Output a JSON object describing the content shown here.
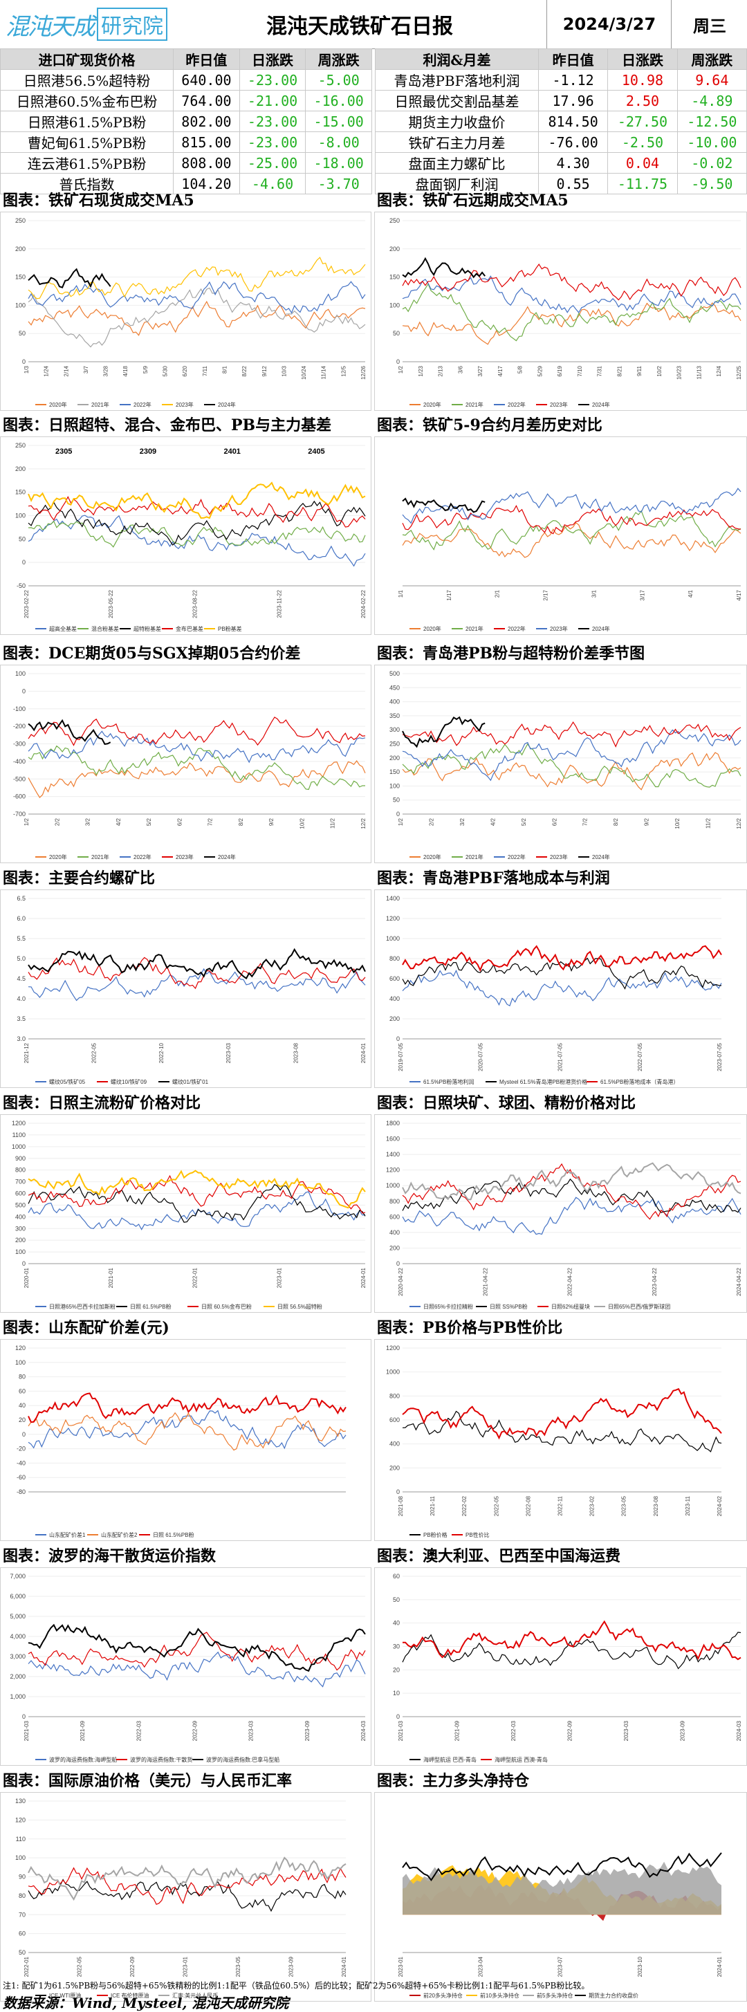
{
  "header": {
    "logo_glyphs": "混沌天成",
    "logo_box": "研究院",
    "title": "混沌天成铁矿石日报",
    "date": "2024/3/27",
    "weekday": "周三"
  },
  "colors": {
    "green": "#21b021",
    "red": "#e00000",
    "header_bg": "#d9d9d9"
  },
  "left_table": {
    "columns": [
      "进口矿现货价格",
      "昨日值",
      "日涨跌",
      "周涨跌"
    ],
    "rows": [
      [
        "日照港56.5%超特粉",
        "640.00",
        "-23.00",
        "-5.00"
      ],
      [
        "日照港60.5%金布巴粉",
        "764.00",
        "-21.00",
        "-16.00"
      ],
      [
        "日照港61.5%PB粉",
        "802.00",
        "-23.00",
        "-15.00"
      ],
      [
        "曹妃甸61.5%PB粉",
        "815.00",
        "-23.00",
        "-8.00"
      ],
      [
        "连云港61.5%PB粉",
        "808.00",
        "-25.00",
        "-18.00"
      ],
      [
        "普氏指数",
        "104.20",
        "-4.60",
        "-3.70"
      ]
    ]
  },
  "right_table": {
    "columns": [
      "利润&月差",
      "昨日值",
      "日涨跌",
      "周涨跌"
    ],
    "rows": [
      [
        "青岛港PBF落地利润",
        "-1.12",
        "10.98",
        "9.64"
      ],
      [
        "日照最优交割品基差",
        "17.96",
        "2.50",
        "-4.89"
      ],
      [
        "期货主力收盘价",
        "814.50",
        "-27.50",
        "-12.50"
      ],
      [
        "铁矿石主力月差",
        "-76.00",
        "-2.50",
        "-10.00"
      ],
      [
        "盘面主力螺矿比",
        "4.30",
        "0.04",
        "-0.02"
      ],
      [
        "盘面钢厂利润",
        "0.55",
        "-11.75",
        "-9.50"
      ]
    ]
  },
  "sections": [
    "图表：铁矿石现货成交MA5",
    "图表：铁矿石远期成交MA5",
    "图表：日照超特、混合、金布巴、PB与主力基差",
    "图表：铁矿5-9合约月差历史对比",
    "图表：DCE期货05与SGX掉期05合约价差",
    "图表：青岛港PB粉与超特粉价差季节图",
    "图表：主要合约螺矿比",
    "图表：青岛港PBF落地成本与利润",
    "图表：日照主流粉矿价格对比",
    "图表：日照块矿、球团、精粉价格对比",
    "图表：山东配矿价差(元)",
    "图表：PB价格与PB性价比",
    "图表：波罗的海干散货运价指数",
    "图表：澳大利亚、巴西至中国海运费",
    "图表：国际原油价格（美元）与人民币汇率",
    "图表：主力多头净持仓"
  ],
  "footer": {
    "note": "注1: 配矿1为61.5%PB粉与56%超特+65%铁精粉的比例1:1配平（铁品位60.5%）后的比较；配矿2为56%超特+65%卡粉比例1:1配平与61.5%PB粉比较。",
    "source": "数据来源：Wind, Mysteel, 混沌天成研究院"
  },
  "chart_data": [
    {
      "type": "line",
      "title": "图表：铁矿石现货成交MA5",
      "ylim": [
        0,
        250
      ],
      "yticks": [
        "0",
        "50",
        "100",
        "150",
        "200",
        "250"
      ],
      "xticks": [
        "1/3",
        "1/24",
        "2/14",
        "3/7",
        "3/28",
        "4/18",
        "5/9",
        "5/30",
        "6/20",
        "7/11",
        "8/1",
        "8/22",
        "9/12",
        "10/3",
        "10/24",
        "11/14",
        "12/5",
        "12/26"
      ],
      "series": [
        {
          "name": "2020年",
          "color": "#ed7d31"
        },
        {
          "name": "2021年",
          "color": "#a5a5a5"
        },
        {
          "name": "2022年",
          "color": "#4472c4"
        },
        {
          "name": "2023年",
          "color": "#ffc000"
        },
        {
          "name": "2024年",
          "color": "#000000"
        }
      ]
    },
    {
      "type": "line",
      "title": "图表：铁矿石远期成交MA5",
      "ylim": [
        0,
        250
      ],
      "yticks": [
        "0",
        "50",
        "100",
        "150",
        "200",
        "250"
      ],
      "xticks": [
        "1/2",
        "1/23",
        "2/13",
        "3/6",
        "3/27",
        "4/17",
        "5/8",
        "5/29",
        "6/19",
        "7/10",
        "7/31",
        "8/21",
        "9/11",
        "10/2",
        "10/23",
        "11/13",
        "12/4",
        "12/25"
      ],
      "series": [
        {
          "name": "2020年",
          "color": "#ed7d31"
        },
        {
          "name": "2021年",
          "color": "#70ad47"
        },
        {
          "name": "2022年",
          "color": "#4472c4"
        },
        {
          "name": "2023年",
          "color": "#e00000"
        },
        {
          "name": "2024年",
          "color": "#000000"
        }
      ]
    },
    {
      "type": "line",
      "title": "图表：日照超特、混合、金布巴、PB与主力基差",
      "ylim": [
        -50,
        250
      ],
      "yticks": [
        "-50",
        "0",
        "50",
        "100",
        "150",
        "200",
        "250"
      ],
      "annotations": [
        "2305",
        "2309",
        "2401",
        "2405"
      ],
      "xticks": [
        "2023-02-22",
        "2023-05-22",
        "2023-08-22",
        "2023-11-22",
        "2024-02-22"
      ],
      "series": [
        {
          "name": "超高全基差",
          "color": "#4472c4"
        },
        {
          "name": "混合粉基差",
          "color": "#70ad47"
        },
        {
          "name": "超特粉基差",
          "color": "#000000"
        },
        {
          "name": "金布巴基差",
          "color": "#e00000"
        },
        {
          "name": "PB粉基差",
          "color": "#ffc000"
        }
      ]
    },
    {
      "type": "line",
      "title": "图表：铁矿5-9合约月差历史对比",
      "ylim": [
        -50,
        200
      ],
      "xticks": [
        "1/1",
        "1/17",
        "2/1",
        "2/17",
        "3/1",
        "3/17",
        "4/1",
        "4/17"
      ],
      "series": [
        {
          "name": "2020年",
          "color": "#ed7d31"
        },
        {
          "name": "2021年",
          "color": "#70ad47"
        },
        {
          "name": "2022年",
          "color": "#e00000"
        },
        {
          "name": "2023年",
          "color": "#4472c4"
        },
        {
          "name": "2024年",
          "color": "#000000"
        }
      ]
    },
    {
      "type": "line",
      "title": "图表：DCE期货05与SGX掉期05合约价差",
      "ylim": [
        -700,
        100
      ],
      "yticks": [
        "-700",
        "-600",
        "-500",
        "-400",
        "-300",
        "-200",
        "-100",
        "0",
        "100"
      ],
      "xticks": [
        "1/2",
        "2/2",
        "3/2",
        "4/2",
        "5/2",
        "6/2",
        "7/2",
        "8/2",
        "9/2",
        "10/2",
        "11/2",
        "12/2"
      ],
      "series": [
        {
          "name": "2020年",
          "color": "#ed7d31"
        },
        {
          "name": "2021年",
          "color": "#70ad47"
        },
        {
          "name": "2022年",
          "color": "#4472c4"
        },
        {
          "name": "2023年",
          "color": "#e00000"
        },
        {
          "name": "2024年",
          "color": "#000000"
        }
      ]
    },
    {
      "type": "line",
      "title": "图表：青岛港PB粉与超特粉价差季节图",
      "ylim": [
        0,
        500
      ],
      "yticks": [
        "0",
        "50",
        "100",
        "150",
        "200",
        "250",
        "300",
        "350",
        "400",
        "450",
        "500"
      ],
      "xticks": [
        "1/2",
        "2/2",
        "3/2",
        "4/2",
        "5/2",
        "6/2",
        "7/2",
        "8/2",
        "9/2",
        "10/2",
        "11/2",
        "12/2"
      ],
      "series": [
        {
          "name": "2020年",
          "color": "#ed7d31"
        },
        {
          "name": "2021年",
          "color": "#70ad47"
        },
        {
          "name": "2022年",
          "color": "#4472c4"
        },
        {
          "name": "2023年",
          "color": "#e00000"
        },
        {
          "name": "2024年",
          "color": "#000000"
        }
      ]
    },
    {
      "type": "line",
      "title": "图表：主要合约螺矿比",
      "ylim": [
        3,
        6.5
      ],
      "yticks": [
        "3.0",
        "3.5",
        "4.0",
        "4.5",
        "5.0",
        "5.5",
        "6.0",
        "6.5"
      ],
      "xticks": [
        "2021-12",
        "2022-05",
        "2022-10",
        "2023-03",
        "2023-08",
        "2024-01"
      ],
      "series": [
        {
          "name": "螺纹05/铁矿05",
          "color": "#4472c4"
        },
        {
          "name": "螺纹10/铁矿09",
          "color": "#e00000"
        },
        {
          "name": "螺纹01/铁矿01",
          "color": "#000000"
        }
      ]
    },
    {
      "type": "line",
      "title": "图表：青岛港PBF落地成本与利润",
      "ylim": [
        0,
        1400
      ],
      "yticks": [
        "0",
        "200",
        "400",
        "600",
        "800",
        "1000",
        "1200",
        "1400"
      ],
      "y2lim": [
        -80,
        100
      ],
      "xticks": [
        "2019-07-05",
        "2020-07-05",
        "2021-07-05",
        "2022-07-05",
        "2023-07-05"
      ],
      "series": [
        {
          "name": "61.5%PB粉落地利润",
          "color": "#4472c4"
        },
        {
          "name": "Mysteel 61.5%青岛港PB粉港货价格",
          "color": "#000000"
        },
        {
          "name": "61.5%PB粉落地成本（青岛港）",
          "color": "#e00000"
        }
      ]
    },
    {
      "type": "line",
      "title": "图表：日照主流粉矿价格对比",
      "ylim": [
        0,
        1200
      ],
      "yticks": [
        "0",
        "100",
        "200",
        "300",
        "400",
        "500",
        "600",
        "700",
        "800",
        "900",
        "1000",
        "1100",
        "1200"
      ],
      "xticks": [
        "2020-01",
        "2021-01",
        "2022-01",
        "2023-01",
        "2024-01"
      ],
      "series": [
        {
          "name": "日照港65%巴西卡拉加斯粉",
          "color": "#4472c4"
        },
        {
          "name": "日照 61.5%PB粉",
          "color": "#000000"
        },
        {
          "name": "日照 60.5%金布巴粉",
          "color": "#e00000"
        },
        {
          "name": "日照 56.5%超特粉",
          "color": "#ffc000"
        }
      ]
    },
    {
      "type": "line",
      "title": "图表：日照块矿、球团、精粉价格对比",
      "ylim": [
        0,
        1800
      ],
      "yticks": [
        "0",
        "200",
        "400",
        "600",
        "800",
        "1000",
        "1200",
        "1400",
        "1600",
        "1800"
      ],
      "xticks": [
        "2020-04-22",
        "2021-04-22",
        "2022-04-22",
        "2023-04-22",
        "2024-04-22"
      ],
      "series": [
        {
          "name": "日照65%卡拉拉精粉",
          "color": "#4472c4"
        },
        {
          "name": "日照 SS%PB粉",
          "color": "#000000"
        },
        {
          "name": "日照62%纽曼块",
          "color": "#e00000"
        },
        {
          "name": "日照65%巴西/俄罗斯球团",
          "color": "#a5a5a5"
        }
      ]
    },
    {
      "type": "line",
      "title": "图表：山东配矿价差(元)",
      "ylim": [
        -80,
        120
      ],
      "yticks": [
        "-80",
        "-60",
        "-40",
        "-20",
        "0",
        "20",
        "40",
        "60",
        "80",
        "100",
        "120"
      ],
      "y2lim": [
        0,
        1100
      ],
      "series": [
        {
          "name": "山东配矿价差1",
          "color": "#4472c4"
        },
        {
          "name": "山东配矿价差2",
          "color": "#ed7d31"
        },
        {
          "name": "日照 61.5%PB粉",
          "color": "#e00000"
        }
      ]
    },
    {
      "type": "line",
      "title": "图表：PB价格与PB性价比",
      "ylim": [
        0,
        1200
      ],
      "yticks": [
        "0",
        "200",
        "400",
        "600",
        "800",
        "1000",
        "1200"
      ],
      "y2lim": [
        -60,
        120
      ],
      "xticks": [
        "2021-08",
        "2021-11",
        "2022-02",
        "2022-05",
        "2022-08",
        "2022-11",
        "2023-02",
        "2023-05",
        "2023-08",
        "2023-11",
        "2024-02"
      ],
      "series": [
        {
          "name": "PB粉价格",
          "color": "#000000"
        },
        {
          "name": "PB性价比",
          "color": "#e00000"
        }
      ]
    },
    {
      "type": "line",
      "title": "图表：波罗的海干散货运价指数",
      "ylim": [
        0,
        7000
      ],
      "yticks": [
        "0",
        "1,000",
        "2,000",
        "3,000",
        "4,000",
        "5,000",
        "6,000",
        "7,000"
      ],
      "xticks": [
        "2021-03",
        "2021-09",
        "2022-03",
        "2022-09",
        "2023-03",
        "2023-09",
        "2024-03"
      ],
      "series": [
        {
          "name": "波罗的海运费指数:海岬型船",
          "color": "#4472c4"
        },
        {
          "name": "波罗的海运费指数:干散货",
          "color": "#e00000"
        },
        {
          "name": "波罗的海运费指数:巴拿马型船",
          "color": "#000000"
        }
      ]
    },
    {
      "type": "line",
      "title": "图表：澳大利亚、巴西至中国海运费",
      "ylim": [
        0,
        60
      ],
      "yticks": [
        "0",
        "10",
        "20",
        "30",
        "40",
        "50",
        "60"
      ],
      "xticks": [
        "2021-03",
        "2021-09",
        "2022-03",
        "2022-09",
        "2023-03",
        "2023-09",
        "2024-03"
      ],
      "series": [
        {
          "name": "海岬型航运 巴西-青岛",
          "color": "#000000"
        },
        {
          "name": "海岬型航运 西澳-青岛",
          "color": "#e00000"
        }
      ]
    },
    {
      "type": "line",
      "title": "图表：国际原油价格（美元）与人民币汇率",
      "ylim": [
        50,
        130
      ],
      "yticks": [
        "50",
        "60",
        "70",
        "80",
        "90",
        "100",
        "110",
        "120",
        "130"
      ],
      "y2lim": [
        6.1,
        7.5
      ],
      "xticks": [
        "2022-01",
        "2022-05",
        "2022-09",
        "2023-01",
        "2023-05",
        "2023-09",
        "2024-01"
      ],
      "series": [
        {
          "name": "ICE WTI原油",
          "color": "#000000"
        },
        {
          "name": "ICE 布伦特原油",
          "color": "#e00000"
        },
        {
          "name": "汇率:美元兑人民币",
          "color": "#a5a5a5"
        }
      ]
    },
    {
      "type": "area",
      "title": "图表：主力多头净持仓",
      "ylim": [
        -400,
        1200
      ],
      "y2lim": [
        -400000,
        800000
      ],
      "xticks": [
        "2023-01",
        "2023-04",
        "2023-07",
        "2023-10",
        "2024-01"
      ],
      "series": [
        {
          "name": "前20多头净持仓",
          "color": "#c00000"
        },
        {
          "name": "前10多头净持仓",
          "color": "#ffc000"
        },
        {
          "name": "前5多头净持仓",
          "color": "#a5a5a5"
        },
        {
          "name": "期货主力合约收盘价",
          "color": "#000000"
        }
      ]
    }
  ]
}
